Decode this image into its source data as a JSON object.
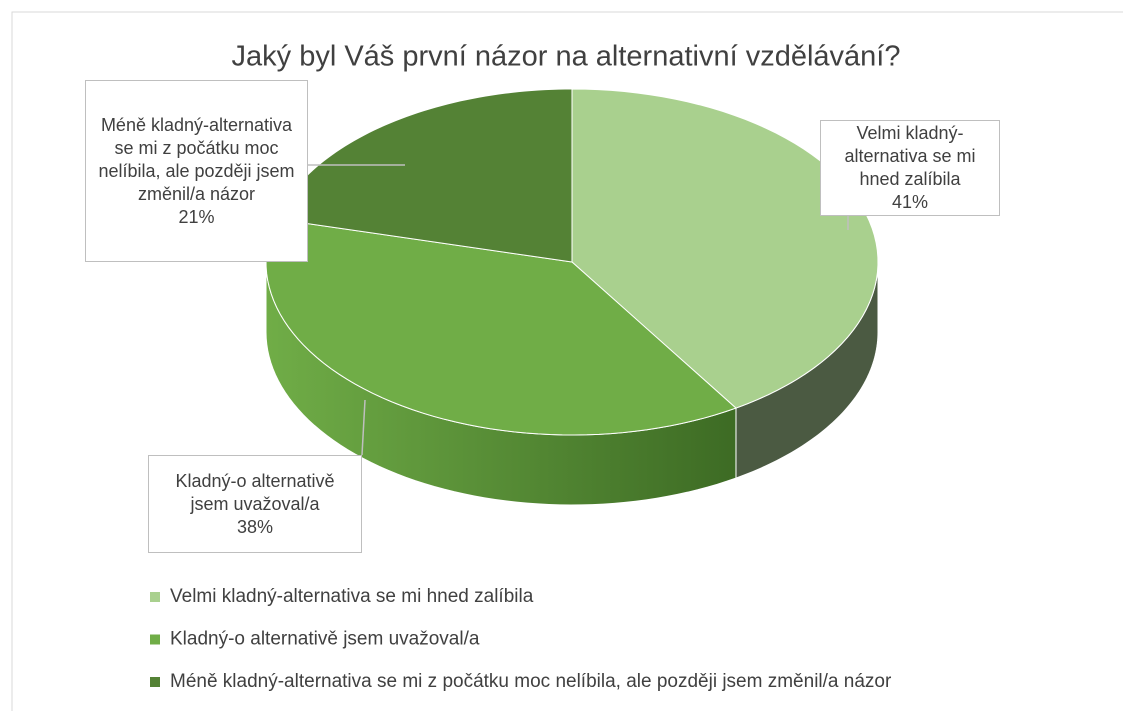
{
  "chart_data": {
    "type": "pie3d",
    "title": "Jaký byl Váš první názor na alternativní vzdělávání?",
    "categories": [
      "Velmi kladný-alternativa se mi hned zalíbila",
      "Kladný-o alternativě jsem uvažoval/a",
      "Méně kladný-alternativa se mi z počátku moc nelíbila, ale později jsem změnil/a názor"
    ],
    "values": [
      41,
      38,
      21
    ],
    "value_labels": [
      "41%",
      "38%",
      "21%"
    ],
    "colors": [
      "#a9d08e",
      "#70ad47",
      "#548235"
    ],
    "legend": "bottom"
  }
}
